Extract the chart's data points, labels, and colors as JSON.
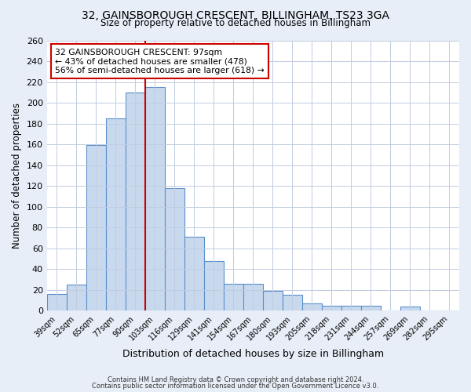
{
  "title1": "32, GAINSBOROUGH CRESCENT, BILLINGHAM, TS23 3GA",
  "title2": "Size of property relative to detached houses in Billingham",
  "xlabel": "Distribution of detached houses by size in Billingham",
  "ylabel": "Number of detached properties",
  "bar_labels": [
    "39sqm",
    "52sqm",
    "65sqm",
    "77sqm",
    "90sqm",
    "103sqm",
    "116sqm",
    "129sqm",
    "141sqm",
    "154sqm",
    "167sqm",
    "180sqm",
    "193sqm",
    "205sqm",
    "218sqm",
    "231sqm",
    "244sqm",
    "257sqm",
    "269sqm",
    "282sqm",
    "295sqm"
  ],
  "bar_values": [
    16,
    25,
    159,
    185,
    210,
    215,
    118,
    71,
    48,
    26,
    26,
    19,
    15,
    7,
    5,
    5,
    5,
    0,
    4,
    0,
    0
  ],
  "bar_color": "#c8d9ee",
  "bar_edge_color": "#5b8fc9",
  "vline_x": 4.5,
  "vline_color": "#cc0000",
  "ylim": [
    0,
    260
  ],
  "yticks": [
    0,
    20,
    40,
    60,
    80,
    100,
    120,
    140,
    160,
    180,
    200,
    220,
    240,
    260
  ],
  "annotation_title": "32 GAINSBOROUGH CRESCENT: 97sqm",
  "annotation_line1": "← 43% of detached houses are smaller (478)",
  "annotation_line2": "56% of semi-detached houses are larger (618) →",
  "footnote1": "Contains HM Land Registry data © Crown copyright and database right 2024.",
  "footnote2": "Contains public sector information licensed under the Open Government Licence v3.0.",
  "bg_color": "#e8eef7",
  "plot_bg_color": "#ffffff",
  "grid_color": "#c0cce0"
}
